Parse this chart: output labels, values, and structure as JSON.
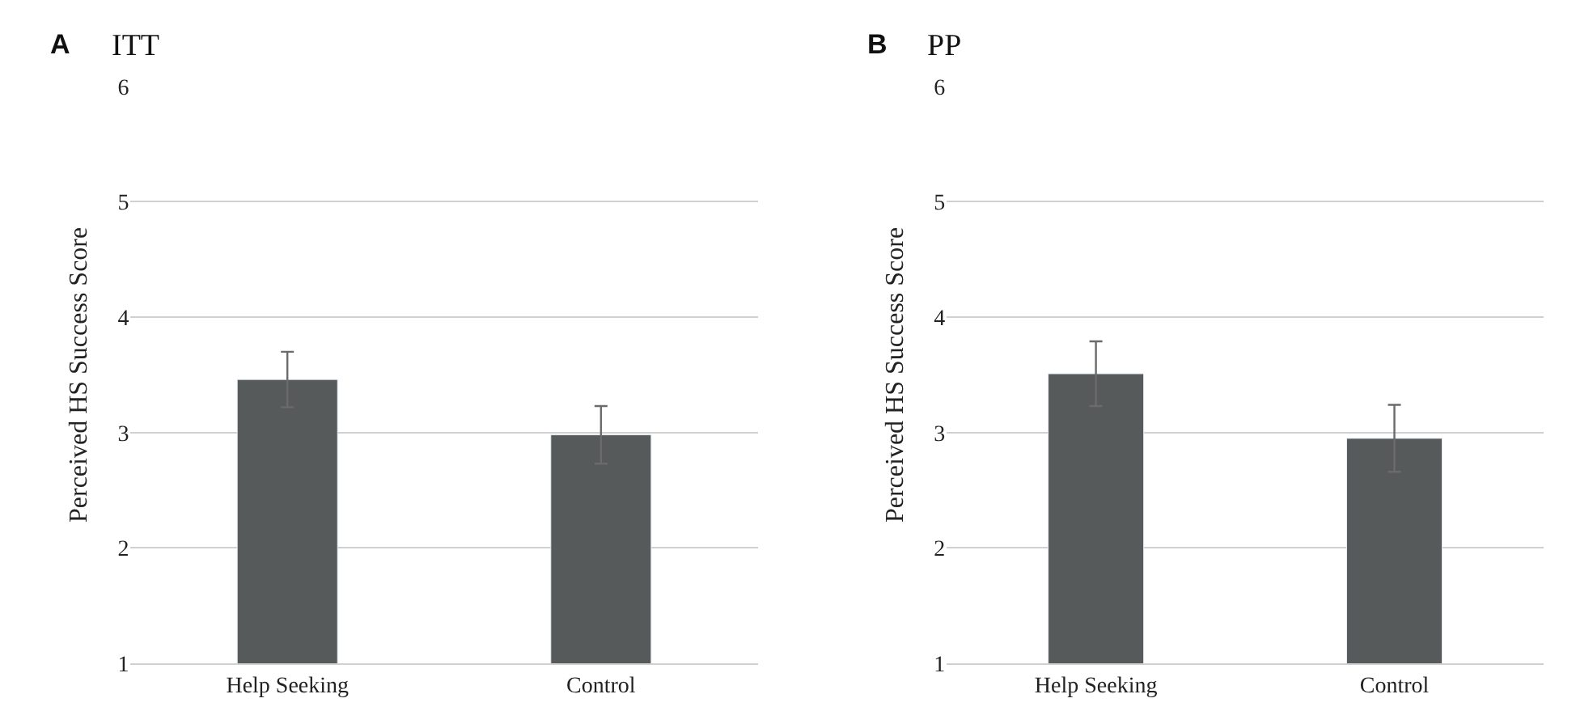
{
  "chart_data": [
    {
      "type": "bar",
      "title": "ITT",
      "annotations": [
        "A"
      ],
      "ylabel": "Perceived HS Success Score",
      "categories": [
        "Help Seeking",
        "Control"
      ],
      "series": [
        {
          "color": "#575a5a",
          "values": [
            3.46,
            2.98
          ],
          "errors": [
            0.24,
            0.25
          ]
        }
      ],
      "ylim": [
        1,
        6
      ],
      "yticks": [
        1,
        2,
        3,
        4,
        5,
        6
      ],
      "grid": "y"
    },
    {
      "type": "bar",
      "title": "PP",
      "annotations": [
        "B"
      ],
      "ylabel": "Perceived HS Success Score",
      "categories": [
        "Help Seeking",
        "Control"
      ],
      "series": [
        {
          "color": "#575a5a",
          "values": [
            3.51,
            2.95
          ],
          "errors": [
            0.28,
            0.29
          ]
        }
      ],
      "ylim": [
        1,
        6
      ],
      "yticks": [
        1,
        2,
        3,
        4,
        5,
        6
      ],
      "grid": "y"
    }
  ]
}
